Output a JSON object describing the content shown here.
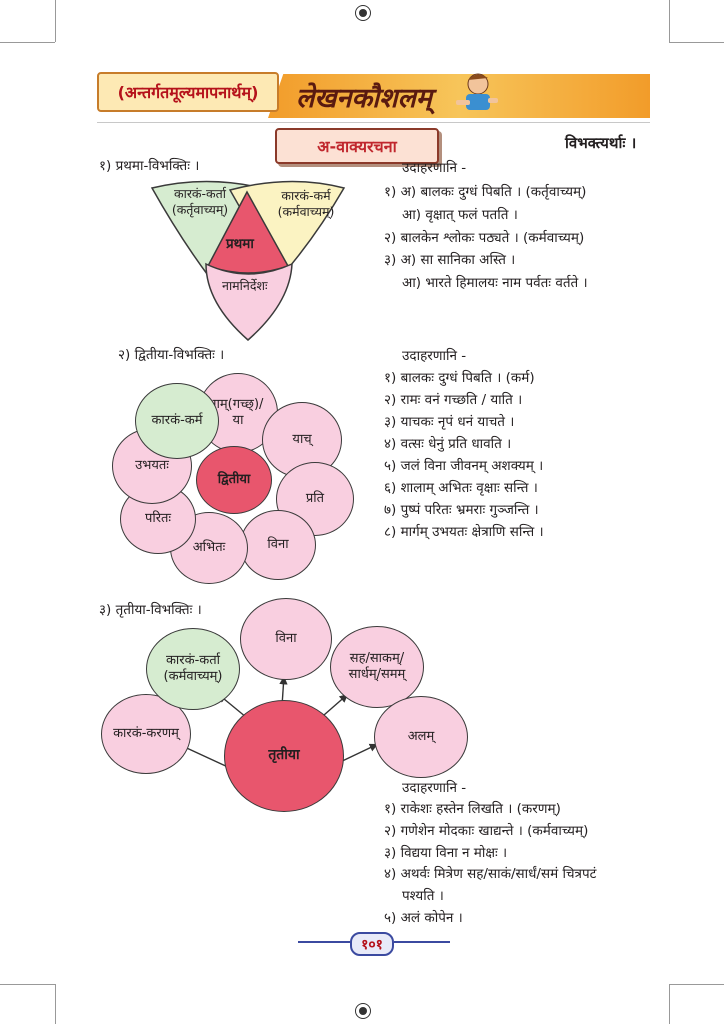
{
  "header": {
    "left_title": "(अन्तर्गतमूल्यमापनार्थम्)",
    "right_title": "लेखनकौशलम्"
  },
  "section": {
    "title": "अ-वाक्यरचना",
    "right_label": "विभक्त्यर्थाः ।"
  },
  "prathama": {
    "heading": "१) प्रथमा-विभक्तिः ।",
    "diagram": {
      "left": "कारकं-कर्ता\n(कर्तृवाच्यम्)",
      "right": "कारकं-कर्म\n(कर्मवाच्यम्)",
      "center": "प्रथमा",
      "bottom": "नामनिर्देशः"
    },
    "examples_title": "उदाहरणानि -",
    "examples": [
      "१) अ) बालकः दुग्धं पिबति । (कर्तृवाच्यम्)",
      "आ) वृक्षात् फलं पतति ।",
      "२) बालकेन श्लोकः पठ्यते । (कर्मवाच्यम्)",
      "३) अ) सा सानिका अस्ति ।",
      "आ) भारते हिमालयः नाम पर्वतः वर्तते ।"
    ]
  },
  "dvitiya": {
    "heading": "२) द्वितीया-विभक्तिः ।",
    "center": "द्वितीया",
    "petals": [
      "कारकं-कर्म",
      "गम्(गच्छ्)/\nया",
      "याच्",
      "प्रति",
      "विना",
      "अभितः",
      "परितः",
      "उभयतः"
    ],
    "examples_title": "उदाहरणानि -",
    "examples": [
      "१) बालकः दुग्धं पिबति । (कर्म)",
      "२) रामः वनं गच्छति / याति ।",
      "३) याचकः नृपं धनं याचते ।",
      "४) वत्सः धेनुं प्रति धावति ।",
      "५) जलं विना जीवनम् अशक्यम् ।",
      "६) शालाम् अभितः वृक्षाः सन्ति ।",
      "७) पुष्पं परितः भ्रमराः गुञ्जन्ति ।",
      "८) मार्गम् उभयतः क्षेत्राणि सन्ति ।"
    ]
  },
  "tritiya": {
    "heading": "३) तृतीया-विभक्तिः ।",
    "center": "तृतीया",
    "nodes": [
      "कारकं-करणम्",
      "कारकं-कर्ता\n(कर्मवाच्यम्)",
      "विना",
      "सह/साकम्/\nसार्धम्/समम्",
      "अलम्"
    ],
    "examples_title": "उदाहरणानि -",
    "examples": [
      "१) राकेशः हस्तेन लिखति । (करणम्)",
      "२) गणेशेन मोदकाः खाद्यन्ते । (कर्मवाच्यम्)",
      "३) विद्यया विना न मोक्षः ।",
      "४) अथर्वः मित्रेण सह/साकं/सार्धं/समं चित्रपटं",
      "पश्यति ।",
      "५) अलं कोपेन ।"
    ]
  },
  "footer": {
    "page_number": "१०१"
  },
  "colors": {
    "accent": "#c0272d",
    "header_orange": "#f29c2a",
    "pink": "#f9cfe0",
    "green": "#d6ecd0",
    "center_red": "#e8566d"
  }
}
